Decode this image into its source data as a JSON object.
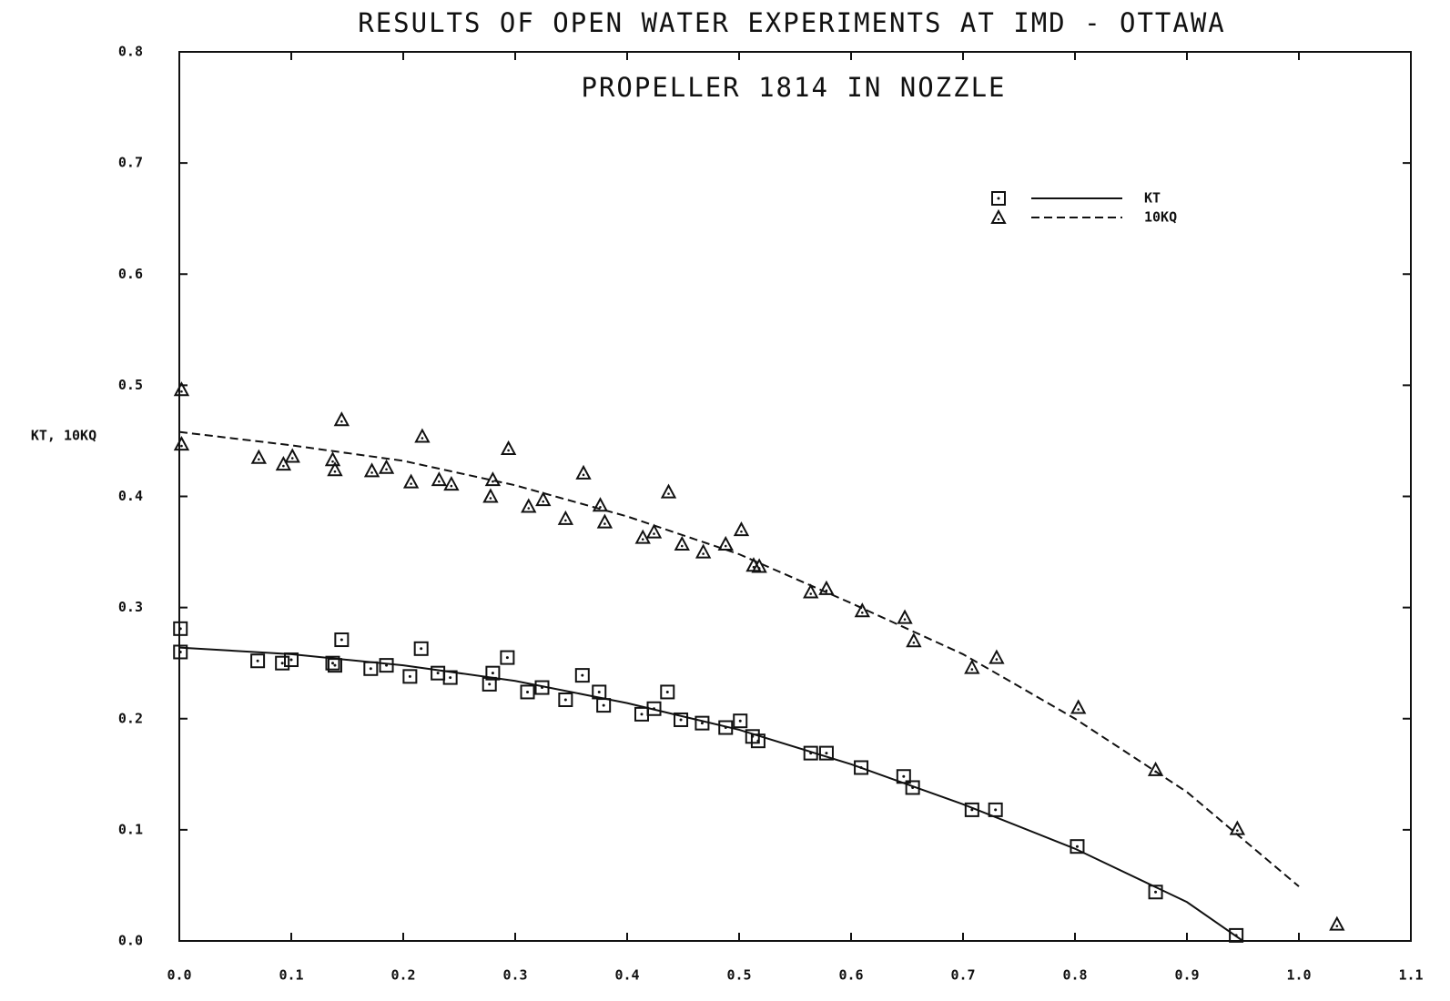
{
  "chart_data": {
    "type": "scatter",
    "title": "RESULTS OF OPEN WATER EXPERIMENTS AT IMD - OTTAWA",
    "subtitle": "PROPELLER 1814 IN NOZZLE",
    "y_label": "KT, 10KQ",
    "legend": "upper right",
    "xlim": [
      0,
      1.1
    ],
    "ylim": [
      0,
      0.8
    ],
    "xticks": [
      {
        "value": 0,
        "label": "0.0"
      },
      0.1,
      0.2,
      0.3,
      0.4,
      0.5,
      0.6,
      0.7,
      0.8,
      0.9,
      {
        "value": 1,
        "label": "1.0"
      },
      1.1
    ],
    "yticks": [
      {
        "value": 0,
        "label": "0.0"
      },
      0.1,
      0.2,
      0.3,
      0.4,
      0.5,
      0.6,
      0.7,
      0.8
    ],
    "series": [
      {
        "name": "KT",
        "color": "#111111",
        "marker": "square",
        "line": "solid",
        "x": [
          0.001,
          0.001,
          0.07,
          0.092,
          0.1,
          0.137,
          0.139,
          0.145,
          0.171,
          0.185,
          0.206,
          0.216,
          0.231,
          0.242,
          0.277,
          0.28,
          0.293,
          0.311,
          0.324,
          0.345,
          0.36,
          0.375,
          0.379,
          0.413,
          0.424,
          0.436,
          0.448,
          0.467,
          0.488,
          0.501,
          0.512,
          0.517,
          0.564,
          0.578,
          0.609,
          0.647,
          0.655,
          0.708,
          0.729,
          0.802,
          0.872,
          0.944
        ],
        "values": [
          0.281,
          0.26,
          0.252,
          0.25,
          0.253,
          0.25,
          0.248,
          0.271,
          0.245,
          0.248,
          0.238,
          0.263,
          0.241,
          0.237,
          0.231,
          0.241,
          0.255,
          0.224,
          0.228,
          0.217,
          0.239,
          0.224,
          0.212,
          0.204,
          0.209,
          0.224,
          0.199,
          0.196,
          0.192,
          0.198,
          0.184,
          0.18,
          0.169,
          0.169,
          0.156,
          0.148,
          0.138,
          0.118,
          0.118,
          0.085,
          0.044,
          0.005
        ],
        "fit_x": [
          0,
          0.1,
          0.2,
          0.3,
          0.4,
          0.5,
          0.6,
          0.7,
          0.8,
          0.9,
          0.95
        ],
        "fit_values": [
          0.264,
          0.258,
          0.248,
          0.234,
          0.214,
          0.19,
          0.159,
          0.123,
          0.083,
          0.035,
          0
        ]
      },
      {
        "name": "10KQ",
        "color": "#111111",
        "marker": "triangle",
        "line": "dashed",
        "x": [
          0.002,
          0.002,
          0.071,
          0.093,
          0.101,
          0.137,
          0.139,
          0.145,
          0.172,
          0.185,
          0.207,
          0.217,
          0.232,
          0.243,
          0.278,
          0.28,
          0.294,
          0.312,
          0.325,
          0.345,
          0.361,
          0.376,
          0.38,
          0.414,
          0.424,
          0.437,
          0.449,
          0.468,
          0.488,
          0.502,
          0.513,
          0.518,
          0.564,
          0.578,
          0.61,
          0.648,
          0.656,
          0.708,
          0.73,
          0.803,
          0.872,
          0.945,
          1.034
        ],
        "values": [
          0.496,
          0.447,
          0.435,
          0.429,
          0.436,
          0.433,
          0.424,
          0.469,
          0.423,
          0.426,
          0.413,
          0.454,
          0.415,
          0.411,
          0.4,
          0.415,
          0.443,
          0.391,
          0.397,
          0.38,
          0.421,
          0.392,
          0.377,
          0.363,
          0.368,
          0.404,
          0.357,
          0.35,
          0.357,
          0.37,
          0.338,
          0.337,
          0.314,
          0.317,
          0.297,
          0.291,
          0.27,
          0.246,
          0.255,
          0.21,
          0.154,
          0.101,
          0.015
        ],
        "fit_x": [
          0,
          0.1,
          0.2,
          0.3,
          0.4,
          0.5,
          0.6,
          0.7,
          0.8,
          0.9,
          1
        ],
        "fit_values": [
          0.458,
          0.446,
          0.432,
          0.41,
          0.382,
          0.348,
          0.304,
          0.258,
          0.2,
          0.134,
          0.049
        ]
      }
    ]
  }
}
